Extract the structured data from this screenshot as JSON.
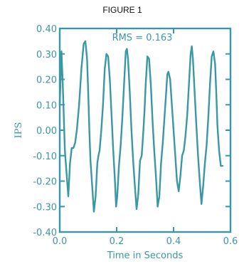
{
  "figure": {
    "title": "FIGURE 1"
  },
  "colors": {
    "accent": "#3a98a6",
    "frame": "#3a98a6",
    "text": "#3a98a6"
  },
  "chart_data": {
    "type": "line",
    "title": "",
    "xlabel": "Time in Seconds",
    "ylabel": "IPS",
    "xlim": [
      0.0,
      0.6
    ],
    "ylim": [
      -0.4,
      0.4
    ],
    "xticks": [
      0.0,
      0.2,
      0.4,
      0.6
    ],
    "xtick_labels": [
      "0.0",
      "0.2",
      "0.4",
      "0.6"
    ],
    "yticks": [
      0.4,
      0.3,
      0.2,
      0.1,
      0.0,
      -0.1,
      -0.2,
      -0.3,
      -0.4
    ],
    "ytick_labels": [
      "0.40",
      "0.30",
      "0.20",
      "0.10",
      "0.00",
      "-0.10",
      "-0.20",
      "-0.30",
      "-0.40"
    ],
    "grid": false,
    "annotation": "RMS = 0.163",
    "series": [
      {
        "x": [
          0.0,
          0.006,
          0.01,
          0.014,
          0.018,
          0.024,
          0.03,
          0.036,
          0.042,
          0.048,
          0.054,
          0.06,
          0.068,
          0.076,
          0.084,
          0.09,
          0.096,
          0.1,
          0.104,
          0.108,
          0.114,
          0.12,
          0.126,
          0.132,
          0.136,
          0.14,
          0.146,
          0.152,
          0.158,
          0.164,
          0.17,
          0.176,
          0.182,
          0.188,
          0.194,
          0.198,
          0.202,
          0.208,
          0.214,
          0.22,
          0.226,
          0.232,
          0.236,
          0.24,
          0.246,
          0.252,
          0.258,
          0.264,
          0.27,
          0.276,
          0.282,
          0.288,
          0.294,
          0.298,
          0.302,
          0.308,
          0.314,
          0.32,
          0.326,
          0.332,
          0.338,
          0.344,
          0.35,
          0.356,
          0.362,
          0.368,
          0.374,
          0.378,
          0.382,
          0.388,
          0.394,
          0.4,
          0.406,
          0.412,
          0.418,
          0.424,
          0.43,
          0.436,
          0.442,
          0.448,
          0.454,
          0.46,
          0.464,
          0.468,
          0.474,
          0.48,
          0.486,
          0.492,
          0.498,
          0.504,
          0.51,
          0.516,
          0.522,
          0.528,
          0.534,
          0.54,
          0.546,
          0.55,
          0.554,
          0.56,
          0.566,
          0.572
        ],
        "y": [
          0.1,
          0.31,
          0.2,
          0.06,
          -0.08,
          -0.17,
          -0.26,
          -0.13,
          -0.07,
          -0.07,
          -0.05,
          0.0,
          0.1,
          0.24,
          0.34,
          0.35,
          0.28,
          0.15,
          0.0,
          -0.12,
          -0.22,
          -0.32,
          -0.26,
          -0.13,
          -0.1,
          -0.08,
          0.0,
          0.1,
          0.24,
          0.3,
          0.29,
          0.2,
          0.06,
          -0.08,
          -0.2,
          -0.3,
          -0.26,
          -0.14,
          -0.06,
          0.05,
          0.18,
          0.31,
          0.32,
          0.28,
          0.15,
          0.0,
          -0.12,
          -0.22,
          -0.31,
          -0.25,
          -0.12,
          -0.1,
          0.0,
          0.08,
          0.18,
          0.29,
          0.28,
          0.18,
          0.04,
          -0.08,
          -0.18,
          -0.3,
          -0.26,
          -0.13,
          -0.05,
          0.05,
          0.15,
          0.22,
          0.23,
          0.2,
          0.1,
          0.0,
          -0.1,
          -0.2,
          -0.24,
          -0.18,
          -0.1,
          -0.08,
          -0.02,
          0.06,
          0.18,
          0.3,
          0.33,
          0.28,
          0.15,
          0.02,
          -0.1,
          -0.2,
          -0.29,
          -0.22,
          -0.13,
          -0.06,
          0.05,
          0.18,
          0.29,
          0.31,
          0.26,
          0.15,
          0.02,
          -0.08,
          -0.14,
          -0.14
        ]
      }
    ]
  }
}
